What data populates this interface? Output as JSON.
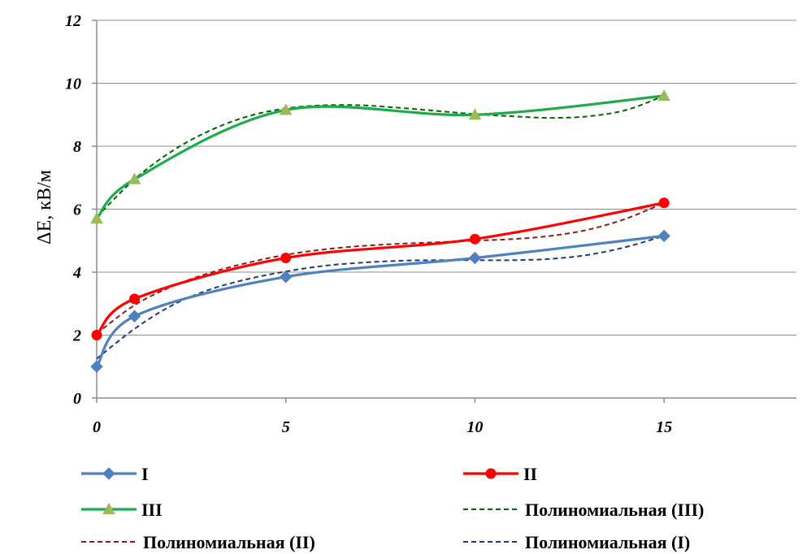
{
  "chart_data": {
    "type": "line",
    "title": "",
    "xlabel": "",
    "ylabel": "ΔE, кВ/м",
    "xlim": [
      0,
      18.5
    ],
    "ylim": [
      0,
      12
    ],
    "x_ticks": [
      "0",
      "5",
      "10",
      "15"
    ],
    "x_tick_values": [
      0,
      5,
      10,
      15
    ],
    "y_ticks": [
      "0",
      "2",
      "4",
      "6",
      "8",
      "10",
      "12"
    ],
    "y_tick_values": [
      0,
      2,
      4,
      6,
      8,
      10,
      12
    ],
    "grid": "horizontal",
    "legend_position": "bottom",
    "series": [
      {
        "name": "I",
        "color": "#4F81BD",
        "marker": "diamond",
        "style": "solid",
        "x": [
          0,
          1,
          5,
          10,
          15
        ],
        "y": [
          1.0,
          2.6,
          3.85,
          4.45,
          5.15
        ]
      },
      {
        "name": "II",
        "color": "#FF0000",
        "marker": "circle",
        "style": "solid",
        "x": [
          0,
          1,
          5,
          10,
          15
        ],
        "y": [
          2.0,
          3.15,
          4.45,
          5.05,
          6.2
        ]
      },
      {
        "name": "III",
        "color": "#1FAA4B",
        "marker": "triangle",
        "style": "solid",
        "x": [
          0,
          1,
          5,
          10,
          15
        ],
        "y": [
          5.7,
          6.95,
          9.15,
          9.0,
          9.6
        ]
      },
      {
        "name": "Полиномиальная (III)",
        "color": "#006400",
        "marker": "none",
        "style": "dashed",
        "x": [
          0,
          1,
          2,
          3,
          4,
          5,
          6,
          7,
          8,
          9,
          10,
          11,
          12,
          13,
          14,
          15
        ],
        "y": [
          5.75,
          6.95,
          7.85,
          8.5,
          8.95,
          9.2,
          9.3,
          9.3,
          9.22,
          9.12,
          9.02,
          8.95,
          8.9,
          8.95,
          9.15,
          9.6
        ]
      },
      {
        "name": "Полиномиальная (II)",
        "color": "#8B1A1A",
        "marker": "none",
        "style": "dashed",
        "x": [
          0,
          1,
          2,
          3,
          4,
          5,
          6,
          7,
          8,
          9,
          10,
          11,
          12,
          13,
          14,
          15
        ],
        "y": [
          2.05,
          2.95,
          3.55,
          3.98,
          4.3,
          4.55,
          4.72,
          4.83,
          4.9,
          4.95,
          5.0,
          5.05,
          5.15,
          5.35,
          5.7,
          6.2
        ]
      },
      {
        "name": "Полиномиальная (I)",
        "color": "#1F3A73",
        "marker": "none",
        "style": "dashed",
        "x": [
          0,
          1,
          2,
          3,
          4,
          5,
          6,
          7,
          8,
          9,
          10,
          11,
          12,
          13,
          14,
          15
        ],
        "y": [
          1.25,
          2.2,
          2.95,
          3.45,
          3.78,
          4.02,
          4.2,
          4.3,
          4.36,
          4.38,
          4.38,
          4.38,
          4.42,
          4.55,
          4.8,
          5.15
        ]
      }
    ],
    "legend_order": [
      0,
      1,
      2,
      3,
      4,
      5
    ]
  }
}
